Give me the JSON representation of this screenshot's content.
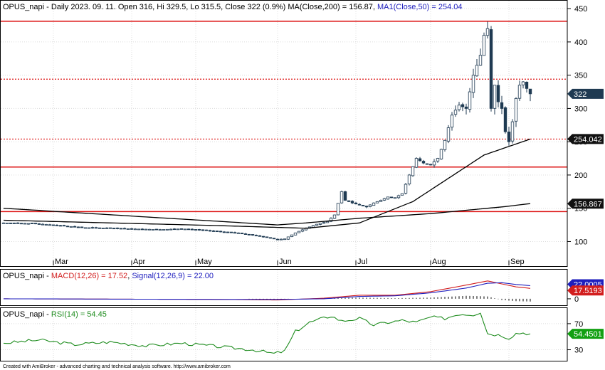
{
  "main_panel": {
    "title_prefix": "OPUS_napi - Daily 2023. 09. 11. Open 316, Hi 329.5, Lo 315.5, Close 322 (0.9%) MA(Close,200) = 156.87, ",
    "title_ma50": "MA1(Close,50) = 254.04",
    "y_ticks": [
      100,
      150,
      200,
      250,
      300,
      350,
      400,
      450
    ],
    "ylim": [
      62,
      463
    ],
    "x_ticks": [
      {
        "label": "Mar",
        "index": 14
      },
      {
        "label": "Apr",
        "index": 36
      },
      {
        "label": "May",
        "index": 54
      },
      {
        "label": "Jun",
        "index": 77
      },
      {
        "label": "Jul",
        "index": 99
      },
      {
        "label": "Aug",
        "index": 120
      },
      {
        "label": "Sep",
        "index": 142
      }
    ],
    "price_tags": [
      {
        "label": "322",
        "value": 322,
        "bg": "#1f3a52",
        "fg": "#ffffff"
      },
      {
        "label": "254.042",
        "value": 254.04,
        "bg": "#111111",
        "fg": "#ffffff"
      },
      {
        "label": "156.867",
        "value": 156.87,
        "bg": "#111111",
        "fg": "#ffffff"
      }
    ],
    "hlines": [
      {
        "value": 431,
        "style": "solid"
      },
      {
        "value": 344,
        "style": "dotted"
      },
      {
        "value": 254,
        "style": "dotted"
      },
      {
        "value": 212,
        "style": "solid"
      },
      {
        "value": 145,
        "style": "solid"
      }
    ],
    "colors": {
      "candle": "#1f3a52",
      "ma": "#000000",
      "level": "#dd1111"
    }
  },
  "macd_panel": {
    "title_prefix": "OPUS_napi - ",
    "macd_label": "MACD(12,26) = 17.52",
    "sep": ", ",
    "signal_label": "Signal(12,26,9) = 22.00",
    "tags": [
      {
        "label": "22.0005",
        "value": 22.0,
        "bg": "#1e1ebe",
        "fg": "#ffffff"
      },
      {
        "label": "17.5193",
        "value": 17.52,
        "bg": "#d21e1e",
        "fg": "#ffffff"
      }
    ],
    "y_ticks": [
      0
    ],
    "ylim": [
      -12,
      50
    ],
    "colors": {
      "macd": "#d21e1e",
      "signal": "#1e1ebe",
      "hist": "#000000"
    }
  },
  "rsi_panel": {
    "title_prefix": "OPUS_napi - ",
    "rsi_label": "RSI(14) = 54.45",
    "tag": {
      "label": "54.4501",
      "value": 54.45,
      "bg": "#12a012",
      "fg": "#ffffff"
    },
    "y_ticks": [
      30,
      70
    ],
    "ylim": [
      12,
      95
    ],
    "colors": {
      "rsi": "#1e8c1e"
    }
  },
  "footer": "Created with AmiBroker - advanced charting and technical analysis software. http://www.amibroker.com",
  "chart_data": [
    {
      "type": "candlestick",
      "title": "OPUS_napi - Daily 2023. 09. 11.",
      "ohlc_anchors": [
        [
          0,
          128
        ],
        [
          8,
          127
        ],
        [
          14,
          125
        ],
        [
          22,
          121
        ],
        [
          30,
          120
        ],
        [
          36,
          119
        ],
        [
          44,
          118
        ],
        [
          50,
          119
        ],
        [
          54,
          118
        ],
        [
          60,
          115
        ],
        [
          66,
          113
        ],
        [
          72,
          108
        ],
        [
          77,
          103
        ],
        [
          79,
          104
        ],
        [
          82,
          113
        ],
        [
          85,
          120
        ],
        [
          88,
          126
        ],
        [
          91,
          130
        ],
        [
          93,
          140
        ],
        [
          95,
          175
        ],
        [
          96,
          162
        ],
        [
          98,
          158
        ],
        [
          100,
          155
        ],
        [
          102,
          152
        ],
        [
          104,
          158
        ],
        [
          106,
          162
        ],
        [
          108,
          167
        ],
        [
          110,
          166
        ],
        [
          112,
          172
        ],
        [
          114,
          200
        ],
        [
          116,
          225
        ],
        [
          118,
          218
        ],
        [
          120,
          215
        ],
        [
          122,
          225
        ],
        [
          124,
          252
        ],
        [
          126,
          290
        ],
        [
          128,
          305
        ],
        [
          130,
          300
        ],
        [
          132,
          350
        ],
        [
          134,
          380
        ],
        [
          135,
          410
        ],
        [
          136,
          420
        ],
        [
          137,
          300
        ],
        [
          138,
          335
        ],
        [
          139,
          310
        ],
        [
          140,
          300
        ],
        [
          141,
          265
        ],
        [
          142,
          250
        ],
        [
          143,
          280
        ],
        [
          144,
          315
        ],
        [
          145,
          335
        ],
        [
          146,
          340
        ],
        [
          147,
          330
        ],
        [
          148,
          322
        ]
      ],
      "ma200": [
        [
          0,
          150
        ],
        [
          40,
          137
        ],
        [
          77,
          125
        ],
        [
          85,
          128
        ],
        [
          100,
          135
        ],
        [
          120,
          142
        ],
        [
          140,
          152
        ],
        [
          148,
          157
        ]
      ],
      "ma50": [
        [
          0,
          132
        ],
        [
          60,
          124
        ],
        [
          85,
          120
        ],
        [
          100,
          128
        ],
        [
          115,
          160
        ],
        [
          125,
          195
        ],
        [
          135,
          230
        ],
        [
          148,
          254
        ]
      ],
      "ylabel": "",
      "xlabel": ""
    },
    {
      "type": "line",
      "title": "MACD(12,26) = 17.52, Signal(12,26,9) = 22.00",
      "macd": [
        [
          0,
          0
        ],
        [
          60,
          -1
        ],
        [
          77,
          -2
        ],
        [
          90,
          1
        ],
        [
          100,
          6
        ],
        [
          110,
          6
        ],
        [
          120,
          12
        ],
        [
          130,
          23
        ],
        [
          136,
          30
        ],
        [
          140,
          25
        ],
        [
          144,
          20
        ],
        [
          148,
          17.5
        ]
      ],
      "signal": [
        [
          0,
          0
        ],
        [
          60,
          -1
        ],
        [
          77,
          -1
        ],
        [
          90,
          0
        ],
        [
          100,
          4
        ],
        [
          110,
          5
        ],
        [
          120,
          10
        ],
        [
          130,
          18
        ],
        [
          136,
          26
        ],
        [
          140,
          27
        ],
        [
          144,
          24
        ],
        [
          148,
          22
        ]
      ]
    },
    {
      "type": "line",
      "title": "RSI(14) = 54.45",
      "rsi": [
        [
          0,
          40
        ],
        [
          10,
          45
        ],
        [
          20,
          38
        ],
        [
          30,
          42
        ],
        [
          40,
          36
        ],
        [
          50,
          40
        ],
        [
          60,
          35
        ],
        [
          70,
          30
        ],
        [
          76,
          24
        ],
        [
          79,
          28
        ],
        [
          82,
          58
        ],
        [
          86,
          72
        ],
        [
          92,
          82
        ],
        [
          95,
          74
        ],
        [
          100,
          78
        ],
        [
          104,
          68
        ],
        [
          108,
          72
        ],
        [
          112,
          75
        ],
        [
          116,
          72
        ],
        [
          120,
          80
        ],
        [
          124,
          78
        ],
        [
          128,
          85
        ],
        [
          132,
          84
        ],
        [
          134,
          88
        ],
        [
          136,
          55
        ],
        [
          140,
          52
        ],
        [
          142,
          48
        ],
        [
          144,
          55
        ],
        [
          146,
          56
        ],
        [
          148,
          54.5
        ]
      ]
    }
  ]
}
